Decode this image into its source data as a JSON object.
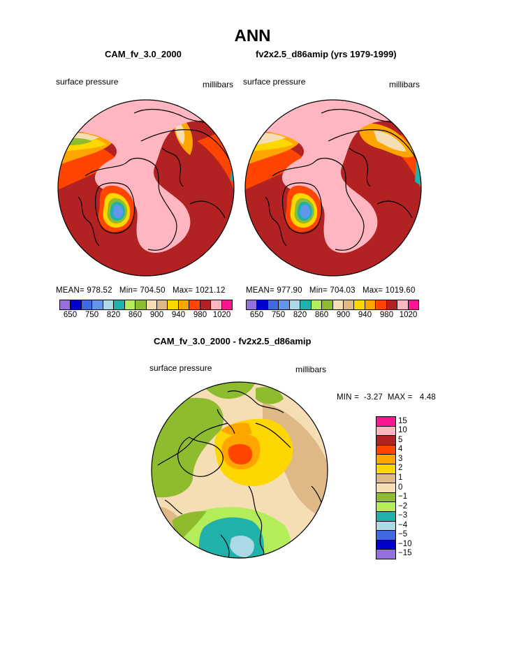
{
  "title": "ANN",
  "panels": [
    {
      "title": "CAM_fv_3.0_2000",
      "variable_label": "surface pressure",
      "units_label": "millibars",
      "stats": {
        "mean_label": "MEAN=",
        "mean": "978.52",
        "min_label": "Min=",
        "min": "704.50",
        "max_label": "Max=",
        "max": "1021.12"
      }
    },
    {
      "title": "fv2x2.5_d86amip (yrs 1979-1999)",
      "variable_label": "surface pressure",
      "units_label": "millibars",
      "stats": {
        "mean_label": "MEAN=",
        "mean": "977.90",
        "min_label": "Min=",
        "min": "704.03",
        "max_label": "Max=",
        "max": "1019.60"
      }
    }
  ],
  "colorbar_top": {
    "colors": [
      "#9370db",
      "#0000cd",
      "#4169e1",
      "#6495ed",
      "#add8e6",
      "#20b2aa",
      "#b3ee5a",
      "#8fbc2f",
      "#f5deb3",
      "#deb887",
      "#ffd700",
      "#ffa500",
      "#ff4500",
      "#b22222",
      "#ffb6c1",
      "#ff1493"
    ],
    "labels": [
      "650",
      "750",
      "820",
      "860",
      "900",
      "940",
      "980",
      "1020"
    ]
  },
  "diff_panel": {
    "title": "CAM_fv_3.0_2000 - fv2x2.5_d86amip",
    "variable_label": "surface pressure",
    "units_label": "millibars",
    "stats": {
      "min_label": "MIN =",
      "min": "-3.27",
      "max_label": "MAX =",
      "max": "4.48"
    }
  },
  "colorbar_diff": {
    "colors": [
      "#ff1493",
      "#ffb6c1",
      "#b22222",
      "#ff4500",
      "#ffa500",
      "#ffd700",
      "#deb887",
      "#f5deb3",
      "#8fbc2f",
      "#b3ee5a",
      "#20b2aa",
      "#add8e6",
      "#4169e1",
      "#0000cd",
      "#9370db"
    ],
    "labels": [
      "15",
      "10",
      "5",
      "4",
      "3",
      "2",
      "1",
      "0",
      "−1",
      "−2",
      "−3",
      "−4",
      "−5",
      "−10",
      "−15"
    ]
  }
}
